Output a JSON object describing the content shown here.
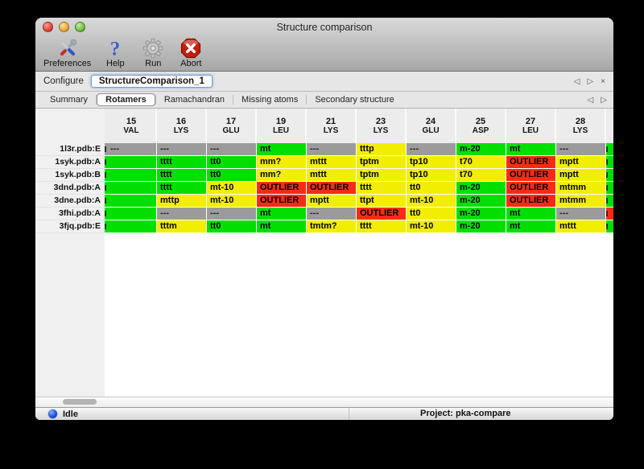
{
  "window": {
    "title": "Structure comparison"
  },
  "toolbar": {
    "items": [
      {
        "label": "Preferences",
        "icon": "tools-icon"
      },
      {
        "label": "Help",
        "icon": "help-icon"
      },
      {
        "label": "Run",
        "icon": "gear-icon"
      },
      {
        "label": "Abort",
        "icon": "abort-icon"
      }
    ]
  },
  "configure": {
    "label": "Configure",
    "value": "StructureComparison_1",
    "nav": {
      "prev": "◁",
      "next": "▷",
      "close": "×"
    }
  },
  "tabs": {
    "items": [
      "Summary",
      "Rotamers",
      "Ramachandran",
      "Missing atoms",
      "Secondary structure"
    ],
    "selected": "Rotamers",
    "nav": {
      "prev": "◁",
      "next": "▷"
    }
  },
  "colors": {
    "green": "#00df00",
    "yellow": "#f2ee00",
    "red": "#f92c13",
    "gray": "#9b9b9b"
  },
  "table": {
    "columns": [
      {
        "num": "15",
        "res": "VAL"
      },
      {
        "num": "16",
        "res": "LYS"
      },
      {
        "num": "17",
        "res": "GLU"
      },
      {
        "num": "19",
        "res": "LEU"
      },
      {
        "num": "21",
        "res": "LYS"
      },
      {
        "num": "23",
        "res": "LYS"
      },
      {
        "num": "24",
        "res": "GLU"
      },
      {
        "num": "25",
        "res": "ASP"
      },
      {
        "num": "27",
        "res": "LEU"
      },
      {
        "num": "28",
        "res": "LYS"
      }
    ],
    "rows": [
      {
        "label": "1l3r.pdb:E",
        "left": "gray",
        "right": "green",
        "cells": [
          [
            "gray",
            "---"
          ],
          [
            "gray",
            "---"
          ],
          [
            "gray",
            "---"
          ],
          [
            "green",
            "mt"
          ],
          [
            "gray",
            "---"
          ],
          [
            "yellow",
            "tttp"
          ],
          [
            "gray",
            "---"
          ],
          [
            "green",
            "m-20"
          ],
          [
            "green",
            "mt"
          ],
          [
            "gray",
            "---"
          ]
        ]
      },
      {
        "label": "1syk.pdb:A",
        "left": "green",
        "right": "green",
        "cells": [
          [
            "green",
            ""
          ],
          [
            "green",
            "tttt"
          ],
          [
            "green",
            "tt0"
          ],
          [
            "yellow",
            "mm?"
          ],
          [
            "yellow",
            "mttt"
          ],
          [
            "yellow",
            "tptm"
          ],
          [
            "yellow",
            "tp10"
          ],
          [
            "yellow",
            "t70"
          ],
          [
            "red",
            "OUTLIER"
          ],
          [
            "yellow",
            "mptt"
          ]
        ]
      },
      {
        "label": "1syk.pdb:B",
        "left": "green",
        "right": "green",
        "cells": [
          [
            "green",
            ""
          ],
          [
            "green",
            "tttt"
          ],
          [
            "green",
            "tt0"
          ],
          [
            "yellow",
            "mm?"
          ],
          [
            "yellow",
            "mttt"
          ],
          [
            "yellow",
            "tptm"
          ],
          [
            "yellow",
            "tp10"
          ],
          [
            "yellow",
            "t70"
          ],
          [
            "red",
            "OUTLIER"
          ],
          [
            "yellow",
            "mptt"
          ]
        ]
      },
      {
        "label": "3dnd.pdb:A",
        "left": "green",
        "right": "green",
        "cells": [
          [
            "green",
            ""
          ],
          [
            "green",
            "tttt"
          ],
          [
            "yellow",
            "mt-10"
          ],
          [
            "red",
            "OUTLIER"
          ],
          [
            "red",
            "OUTLIER"
          ],
          [
            "yellow",
            "tttt"
          ],
          [
            "yellow",
            "tt0"
          ],
          [
            "green",
            "m-20"
          ],
          [
            "red",
            "OUTLIER"
          ],
          [
            "yellow",
            "mtmm"
          ]
        ]
      },
      {
        "label": "3dne.pdb:A",
        "left": "green",
        "right": "green",
        "cells": [
          [
            "green",
            ""
          ],
          [
            "yellow",
            "mttp"
          ],
          [
            "yellow",
            "mt-10"
          ],
          [
            "red",
            "OUTLIER"
          ],
          [
            "yellow",
            "mptt"
          ],
          [
            "yellow",
            "ttpt"
          ],
          [
            "yellow",
            "mt-10"
          ],
          [
            "green",
            "m-20"
          ],
          [
            "red",
            "OUTLIER"
          ],
          [
            "yellow",
            "mtmm"
          ]
        ]
      },
      {
        "label": "3fhi.pdb:A",
        "left": "green",
        "right": "red",
        "cells": [
          [
            "green",
            ""
          ],
          [
            "gray",
            "---"
          ],
          [
            "gray",
            "---"
          ],
          [
            "green",
            "mt"
          ],
          [
            "gray",
            "---"
          ],
          [
            "red",
            "OUTLIER"
          ],
          [
            "yellow",
            "tt0"
          ],
          [
            "green",
            "m-20"
          ],
          [
            "green",
            "mt"
          ],
          [
            "gray",
            "---"
          ]
        ]
      },
      {
        "label": "3fjq.pdb:E",
        "left": "green",
        "right": "green",
        "cells": [
          [
            "green",
            ""
          ],
          [
            "yellow",
            "tttm"
          ],
          [
            "green",
            "tt0"
          ],
          [
            "green",
            "mt"
          ],
          [
            "yellow",
            "tmtm?"
          ],
          [
            "yellow",
            "tttt"
          ],
          [
            "yellow",
            "mt-10"
          ],
          [
            "green",
            "m-20"
          ],
          [
            "green",
            "mt"
          ],
          [
            "yellow",
            "mttt"
          ]
        ]
      }
    ]
  },
  "statusbar": {
    "status": "Idle",
    "project": "Project: pka-compare"
  }
}
